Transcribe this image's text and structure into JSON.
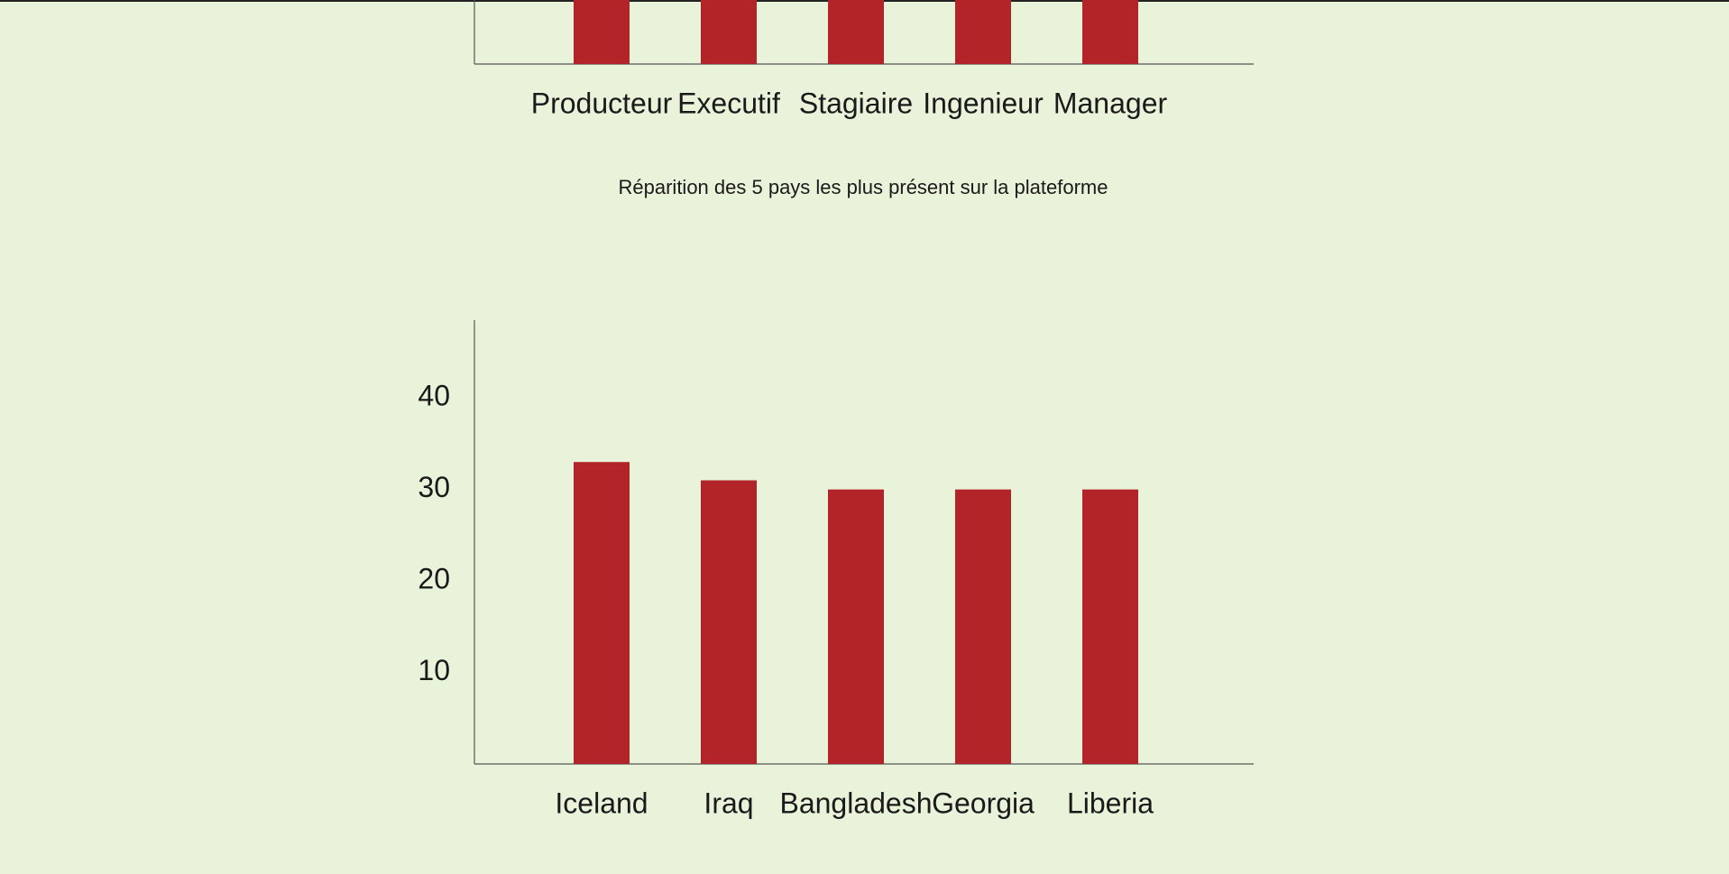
{
  "chart_data": [
    {
      "type": "bar",
      "categories": [
        "Producteur",
        "Executif",
        "Stagiaire",
        "Ingenieur",
        "Manager"
      ],
      "color": "#b22427"
    },
    {
      "type": "bar",
      "title": "Réparition des 5 pays les plus présent sur la plateforme",
      "categories": [
        "Iceland",
        "Iraq",
        "Bangladesh",
        "Georgia",
        "Liberia"
      ],
      "values": [
        33,
        31,
        30,
        30,
        30
      ],
      "color": "#b22427",
      "ylim": [
        0,
        48.5
      ],
      "yticks": [
        10,
        20,
        30,
        40
      ]
    }
  ]
}
